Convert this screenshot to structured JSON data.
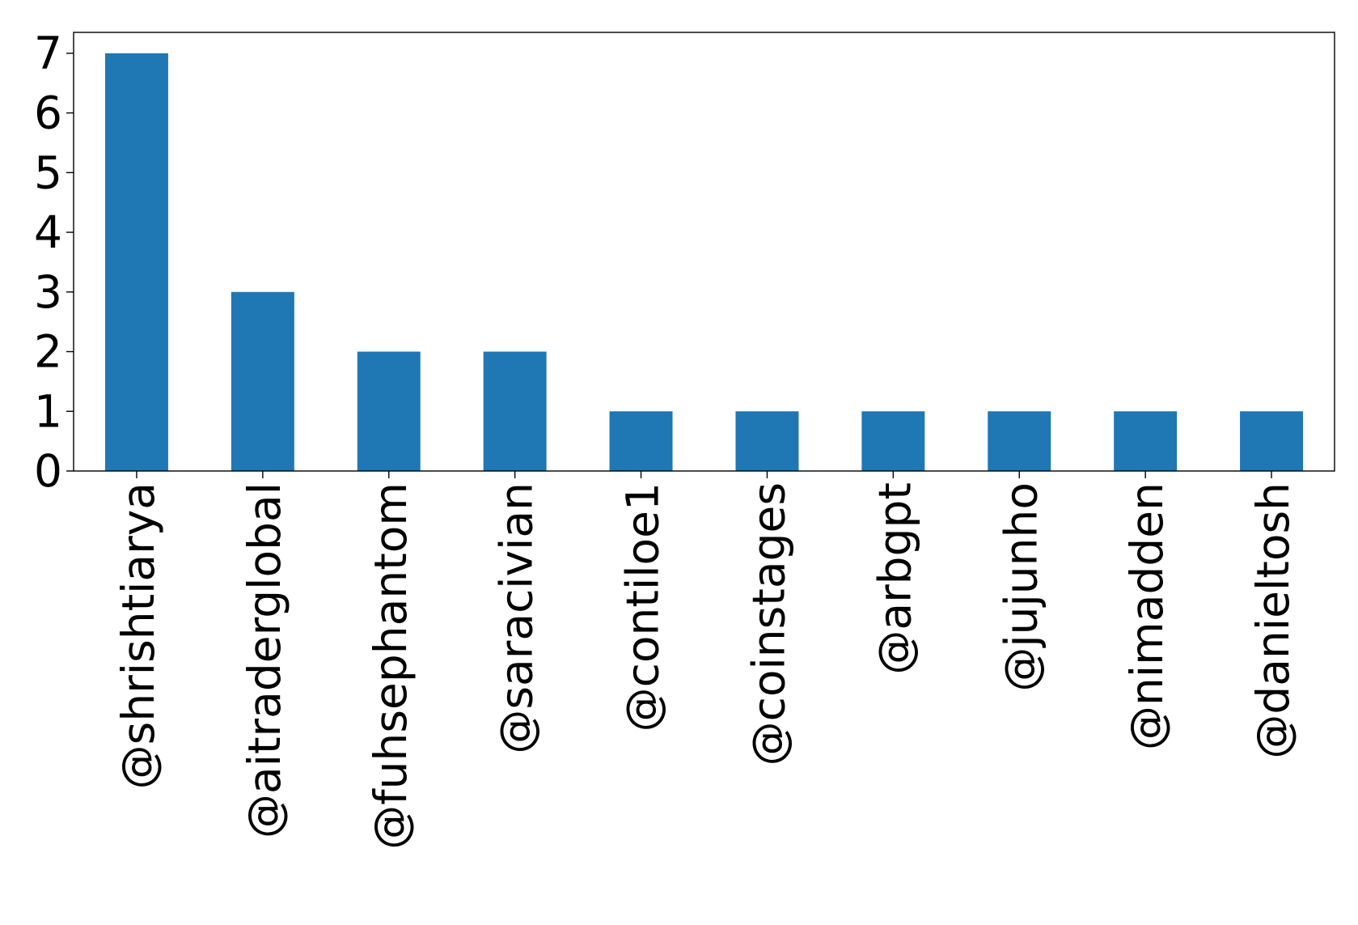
{
  "chart_data": {
    "type": "bar",
    "categories": [
      "@shrishtiarya",
      "@aitraderglobal",
      "@fuhsephantom",
      "@saracivian",
      "@contiloe1",
      "@coinstages",
      "@arbgpt",
      "@jujunho",
      "@nimadden",
      "@danieltosh"
    ],
    "values": [
      7,
      3,
      2,
      2,
      1,
      1,
      1,
      1,
      1,
      1
    ],
    "title": "",
    "xlabel": "",
    "ylabel": "",
    "ylim": [
      0,
      7.35
    ],
    "yticks": [
      0,
      1,
      2,
      3,
      4,
      5,
      6,
      7
    ],
    "bar_color": "#1f77b4",
    "grid": false,
    "legend": "none"
  }
}
